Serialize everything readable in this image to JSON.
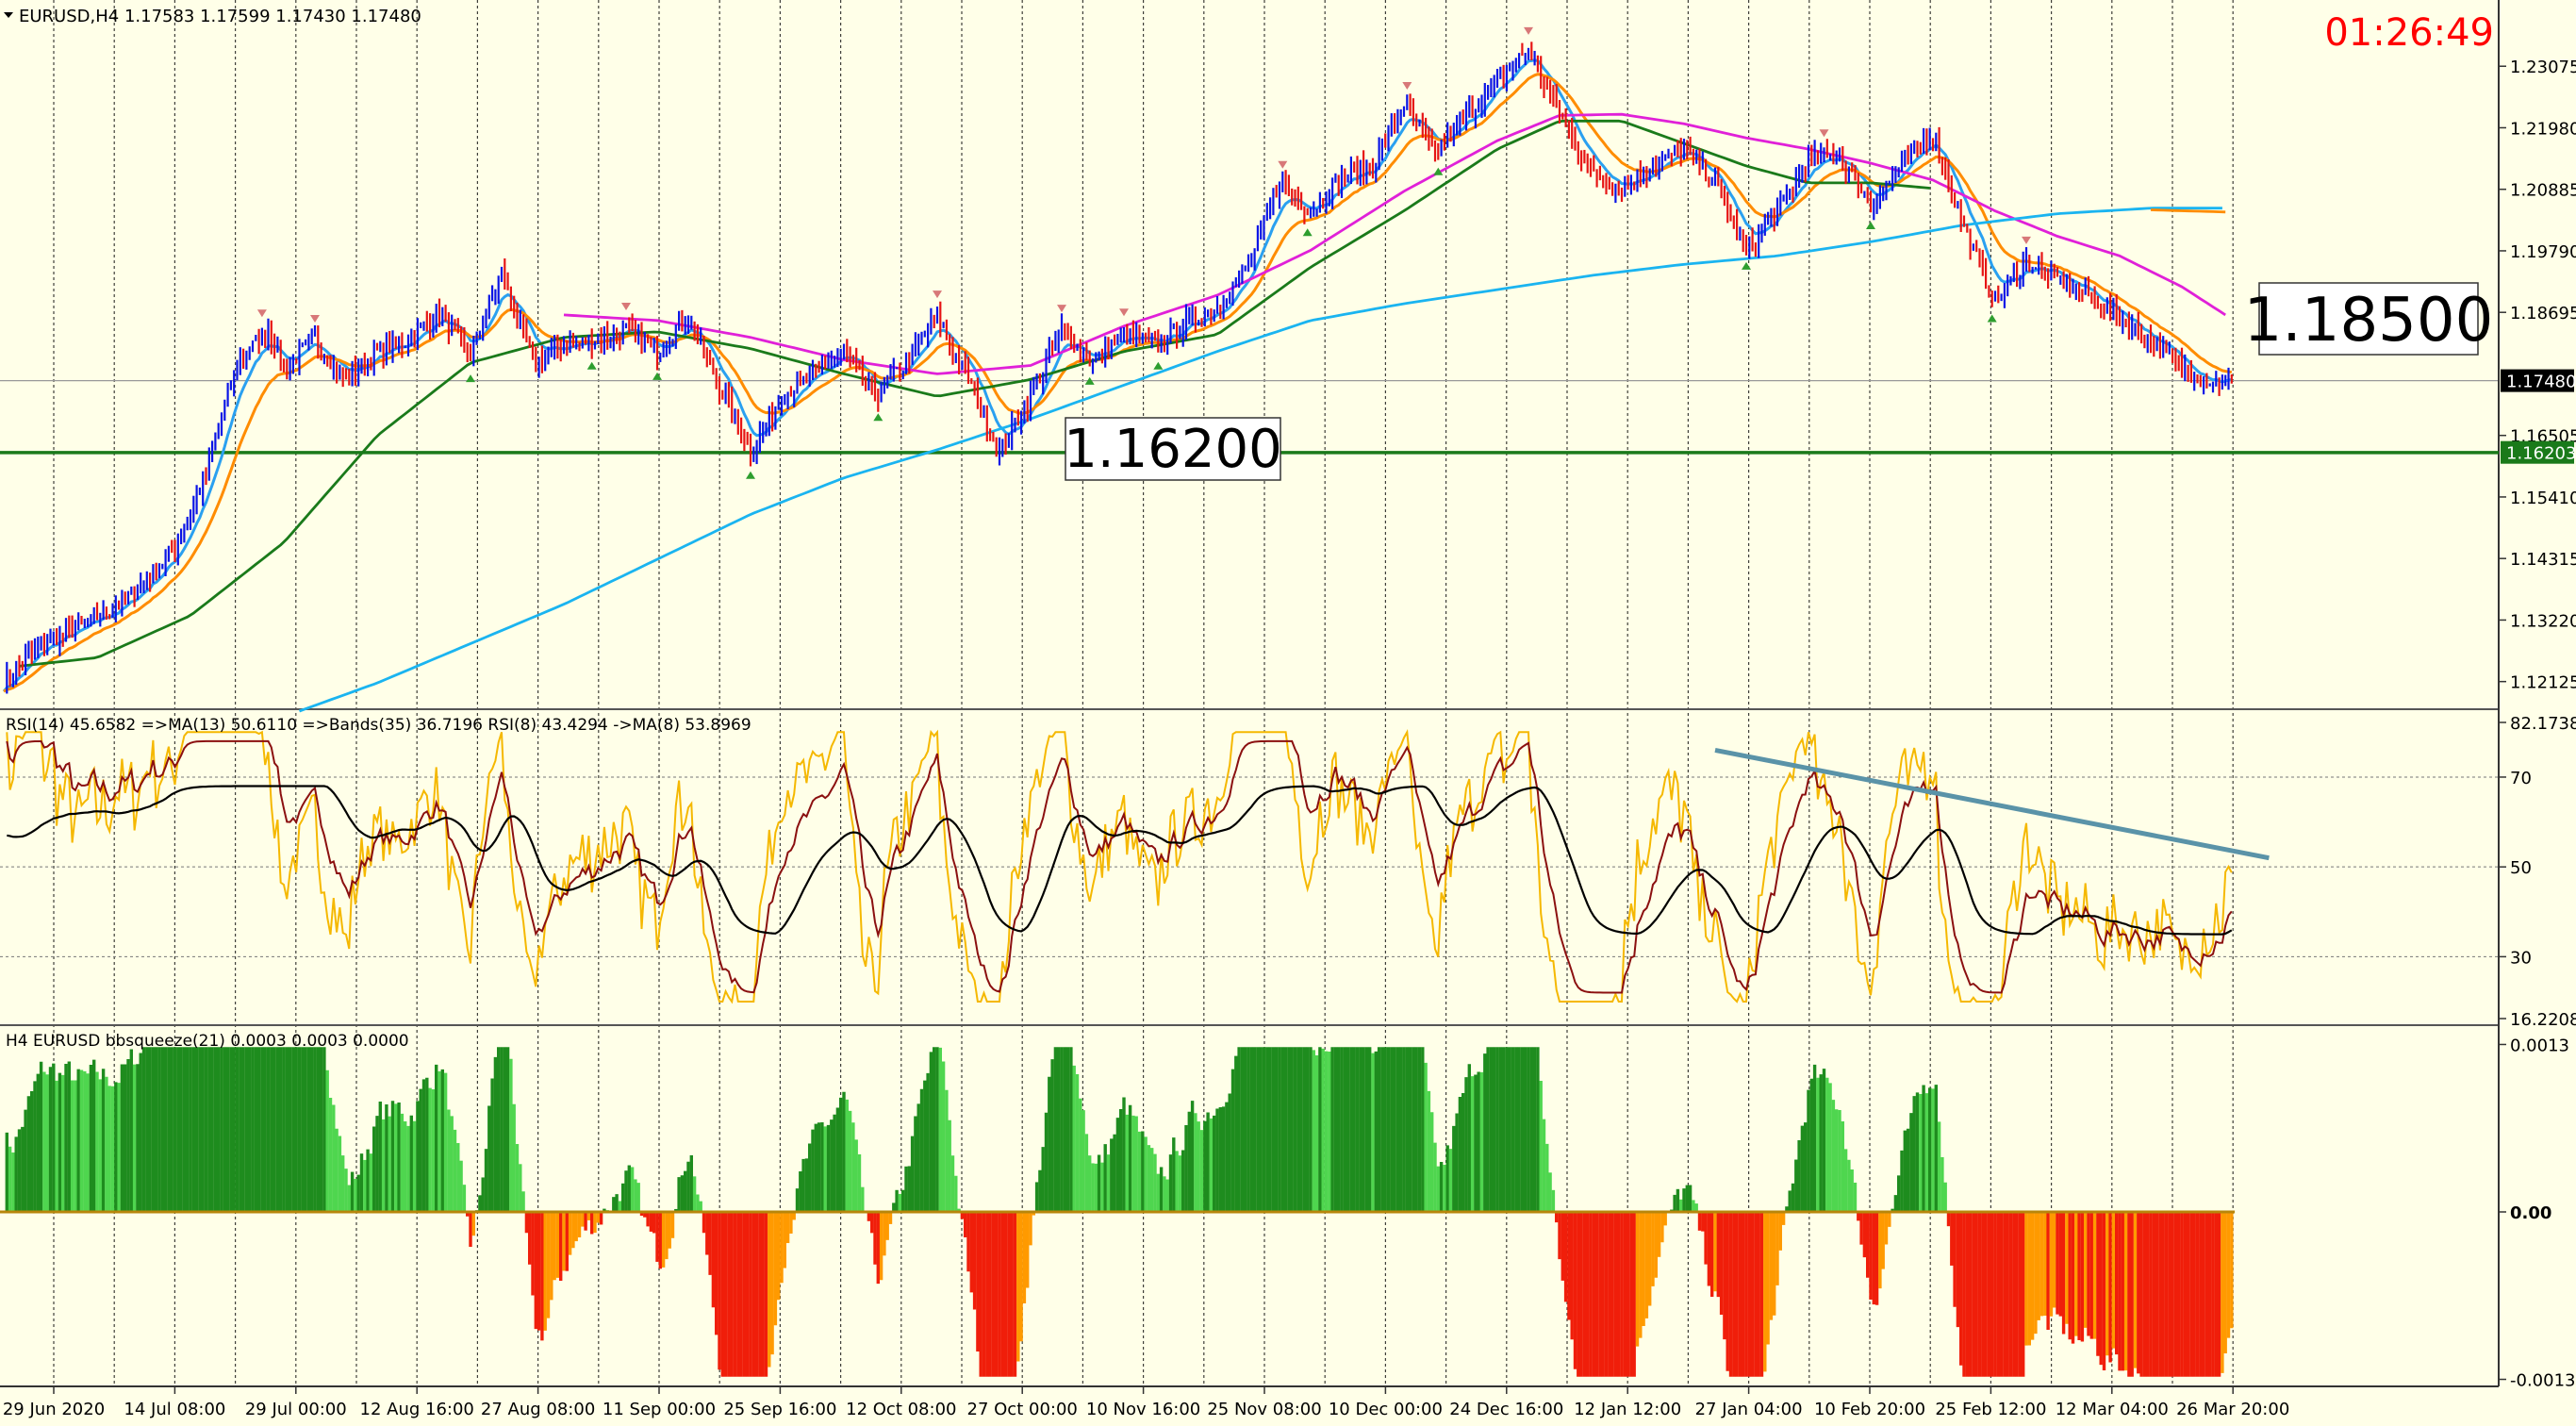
{
  "header": {
    "title": "EURUSD,H4  1.17583 1.17599 1.17430 1.17480",
    "clock": "01:26:49"
  },
  "colors": {
    "background": "#ffffe8",
    "grid": "#000000",
    "up_bar": "#0a14e6",
    "down_bar": "#e61414",
    "ma_fast": "#2aa0f0",
    "ma_orange": "#ff8c00",
    "ma_green": "#1a7a1a",
    "ma_magenta": "#e020d8",
    "ma_200": "#1ab4f0",
    "support_line": "#1a7a1a",
    "rsi_yellow": "#f5b800",
    "rsi_brown": "#8b1010",
    "rsi_black": "#000000",
    "trendline": "#5a93a8",
    "squeeze_green_dark": "#1e8c1e",
    "squeeze_green_light": "#4fd64f",
    "squeeze_red": "#f01e0a",
    "squeeze_orange": "#ff9a00",
    "clock": "#ff0000"
  },
  "chart_data": [
    {
      "type": "candlestick",
      "name": "main",
      "symbol": "EURUSD",
      "timeframe": "H4",
      "ohlc_header": {
        "open": 1.17583,
        "high": 1.17599,
        "low": 1.1743,
        "close": 1.1748
      },
      "ylim": [
        1.117,
        1.2375
      ],
      "y_ticks": [
        "1.23075",
        "1.21980",
        "1.20885",
        "1.19790",
        "1.18695",
        "1.17480",
        "1.16505",
        "1.16203",
        "1.15410",
        "1.14315",
        "1.13220",
        "1.12125"
      ],
      "current_price_label": "1.17480",
      "support_price_label": "1.16203",
      "support_level": 1.162,
      "annotations": [
        {
          "text": "1.16200",
          "price": 1.162
        },
        {
          "text": "1.18500",
          "price": 1.185
        }
      ],
      "price_path": [
        [
          0,
          1.121
        ],
        [
          12,
          1.128
        ],
        [
          25,
          1.131
        ],
        [
          40,
          1.136
        ],
        [
          55,
          1.145
        ],
        [
          65,
          1.158
        ],
        [
          75,
          1.178
        ],
        [
          85,
          1.184
        ],
        [
          90,
          1.177
        ],
        [
          100,
          1.182
        ],
        [
          110,
          1.175
        ],
        [
          120,
          1.18
        ],
        [
          130,
          1.182
        ],
        [
          140,
          1.187
        ],
        [
          150,
          1.179
        ],
        [
          160,
          1.194
        ],
        [
          170,
          1.178
        ],
        [
          180,
          1.181
        ],
        [
          190,
          1.182
        ],
        [
          200,
          1.184
        ],
        [
          210,
          1.18
        ],
        [
          220,
          1.186
        ],
        [
          230,
          1.174
        ],
        [
          240,
          1.162
        ],
        [
          250,
          1.172
        ],
        [
          260,
          1.176
        ],
        [
          270,
          1.18
        ],
        [
          280,
          1.172
        ],
        [
          290,
          1.178
        ],
        [
          300,
          1.186
        ],
        [
          310,
          1.175
        ],
        [
          320,
          1.162
        ],
        [
          330,
          1.172
        ],
        [
          340,
          1.184
        ],
        [
          350,
          1.178
        ],
        [
          360,
          1.183
        ],
        [
          370,
          1.181
        ],
        [
          380,
          1.185
        ],
        [
          390,
          1.188
        ],
        [
          400,
          1.195
        ],
        [
          410,
          1.21
        ],
        [
          420,
          1.205
        ],
        [
          430,
          1.211
        ],
        [
          440,
          1.213
        ],
        [
          450,
          1.224
        ],
        [
          460,
          1.215
        ],
        [
          470,
          1.222
        ],
        [
          480,
          1.228
        ],
        [
          490,
          1.234
        ],
        [
          500,
          1.222
        ],
        [
          510,
          1.212
        ],
        [
          520,
          1.209
        ],
        [
          530,
          1.213
        ],
        [
          540,
          1.216
        ],
        [
          550,
          1.21
        ],
        [
          560,
          1.198
        ],
        [
          570,
          1.205
        ],
        [
          580,
          1.214
        ],
        [
          590,
          1.215
        ],
        [
          600,
          1.206
        ],
        [
          610,
          1.213
        ],
        [
          620,
          1.219
        ],
        [
          630,
          1.202
        ],
        [
          640,
          1.189
        ],
        [
          650,
          1.196
        ],
        [
          660,
          1.193
        ],
        [
          670,
          1.19
        ],
        [
          680,
          1.186
        ],
        [
          690,
          1.182
        ],
        [
          700,
          1.177
        ],
        [
          710,
          1.1745
        ],
        [
          716,
          1.1748
        ]
      ],
      "series": [
        {
          "name": "MA green",
          "points": [
            [
              5,
              1.124
            ],
            [
              30,
              1.1255
            ],
            [
              60,
              1.133
            ],
            [
              90,
              1.146
            ],
            [
              120,
              1.165
            ],
            [
              150,
              1.178
            ],
            [
              180,
              1.1825
            ],
            [
              210,
              1.1835
            ],
            [
              240,
              1.1805
            ],
            [
              270,
              1.176
            ],
            [
              300,
              1.172
            ],
            [
              330,
              1.175
            ],
            [
              360,
              1.18
            ],
            [
              390,
              1.183
            ],
            [
              420,
              1.195
            ],
            [
              450,
              1.205
            ],
            [
              480,
              1.216
            ],
            [
              500,
              1.221
            ],
            [
              520,
              1.221
            ],
            [
              540,
              1.217
            ],
            [
              560,
              1.213
            ],
            [
              580,
              1.21
            ],
            [
              600,
              1.21
            ],
            [
              620,
              1.209
            ]
          ]
        },
        {
          "name": "MA magenta",
          "points": [
            [
              180,
              1.1865
            ],
            [
              210,
              1.1855
            ],
            [
              240,
              1.1825
            ],
            [
              270,
              1.1785
            ],
            [
              300,
              1.176
            ],
            [
              330,
              1.1775
            ],
            [
              360,
              1.1845
            ],
            [
              390,
              1.19
            ],
            [
              420,
              1.198
            ],
            [
              450,
              1.2085
            ],
            [
              480,
              1.2175
            ],
            [
              500,
              1.222
            ],
            [
              520,
              1.2222
            ],
            [
              540,
              1.2205
            ],
            [
              560,
              1.218
            ],
            [
              580,
              1.216
            ],
            [
              600,
              1.2135
            ],
            [
              620,
              1.2105
            ],
            [
              640,
              1.205
            ],
            [
              660,
              1.2005
            ],
            [
              680,
              1.197
            ],
            [
              700,
              1.1915
            ],
            [
              714,
              1.1865
            ]
          ]
        },
        {
          "name": "MA 200",
          "points": [
            [
              95,
              1.116
            ],
            [
              120,
              1.121
            ],
            [
              150,
              1.128
            ],
            [
              180,
              1.135
            ],
            [
              210,
              1.143
            ],
            [
              240,
              1.151
            ],
            [
              270,
              1.1575
            ],
            [
              300,
              1.1625
            ],
            [
              330,
              1.168
            ],
            [
              360,
              1.174
            ],
            [
              390,
              1.18
            ],
            [
              420,
              1.1855
            ],
            [
              450,
              1.1885
            ],
            [
              480,
              1.191
            ],
            [
              510,
              1.1935
            ],
            [
              540,
              1.1955
            ],
            [
              570,
              1.197
            ],
            [
              600,
              1.1995
            ],
            [
              630,
              1.2025
            ],
            [
              660,
              1.2045
            ],
            [
              690,
              1.2055
            ],
            [
              714,
              1.2055
            ]
          ]
        },
        {
          "name": "MA orange long",
          "points": [
            [
              690,
              1.2052
            ],
            [
              714,
              1.2048
            ]
          ]
        }
      ]
    },
    {
      "type": "line",
      "name": "rsi",
      "label": "RSI(14) 45.6582  =>MA(13) 50.6110  =>Bands(35) 36.7196  RSI(8) 43.4294  ->MA(8) 53.8969",
      "ylim": [
        16.2208,
        82.1738
      ],
      "y_ticks": [
        "82.1738",
        "70",
        "50",
        "30",
        "16.2208"
      ],
      "levels": [
        70,
        50,
        30
      ],
      "trendline": {
        "points": [
          [
            550,
            76
          ],
          [
            728,
            52
          ]
        ]
      }
    },
    {
      "type": "bar",
      "name": "bbsqueeze",
      "label": "H4 EURUSD bbsqueeze(21) 0.0003 0.0003 0.0000",
      "ylim": [
        -0.00134,
        0.00134
      ],
      "y_ticks": [
        "0.0013",
        "0.00",
        "-0.0013"
      ]
    }
  ],
  "x_axis": {
    "labels": [
      "29 Jun 2020",
      "14 Jul 08:00",
      "29 Jul 00:00",
      "12 Aug 16:00",
      "27 Aug 08:00",
      "11 Sep 00:00",
      "25 Sep 16:00",
      "12 Oct 08:00",
      "27 Oct 00:00",
      "10 Nov 16:00",
      "25 Nov 08:00",
      "10 Dec 00:00",
      "24 Dec 16:00",
      "12 Jan 12:00",
      "27 Jan 04:00",
      "10 Feb 20:00",
      "25 Feb 12:00",
      "12 Mar 04:00",
      "26 Mar 20:00"
    ]
  }
}
